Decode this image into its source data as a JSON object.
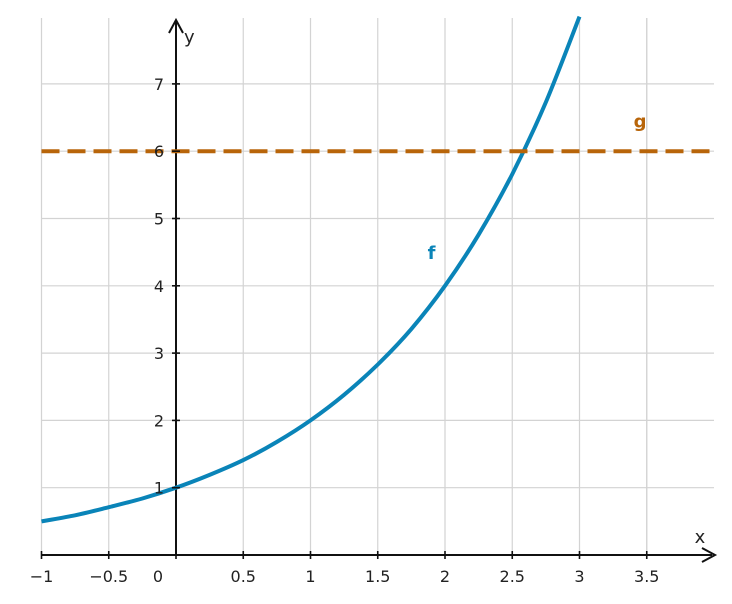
{
  "chart_data": {
    "type": "line",
    "xlabel": "x",
    "ylabel": "y",
    "xlim": [
      -1,
      4
    ],
    "ylim": [
      0,
      7.5
    ],
    "grid": true,
    "x_ticks": [
      -1,
      -0.5,
      0,
      0.5,
      1,
      1.5,
      2,
      2.5,
      3,
      3.5
    ],
    "x_tick_labels": [
      "−1",
      "−0.5",
      "0",
      "0.5",
      "1",
      "1.5",
      "2",
      "2.5",
      "3",
      "3.5"
    ],
    "y_ticks": [
      1,
      2,
      3,
      4,
      5,
      6,
      7
    ],
    "y_tick_labels": [
      "1",
      "2",
      "3",
      "4",
      "5",
      "6",
      "7"
    ],
    "series": [
      {
        "name": "f",
        "color": "#0a84b8",
        "style": "solid",
        "x": [
          -1,
          -0.75,
          -0.5,
          -0.25,
          0,
          0.25,
          0.5,
          0.75,
          1,
          1.25,
          1.5,
          1.75,
          2,
          2.25,
          2.5,
          2.75,
          3
        ],
        "y": [
          0.5,
          0.59,
          0.71,
          0.84,
          1,
          1.19,
          1.41,
          1.68,
          2,
          2.38,
          2.83,
          3.36,
          4,
          4.76,
          5.66,
          6.73,
          8
        ]
      },
      {
        "name": "g",
        "color": "#b8650a",
        "style": "dashed",
        "x": [
          -1,
          4
        ],
        "y": [
          6,
          6
        ]
      }
    ],
    "annotations": [
      {
        "text": "f",
        "x": 1.9,
        "y": 4.4,
        "color": "#0a84b8"
      },
      {
        "text": "g",
        "x": 3.45,
        "y": 6.35,
        "color": "#b8650a"
      }
    ]
  }
}
